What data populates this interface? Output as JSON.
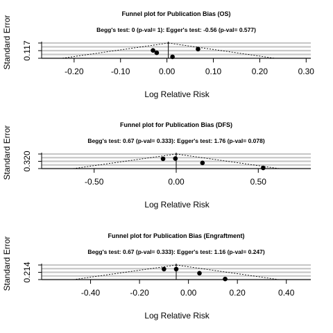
{
  "chart_data": [
    {
      "type": "scatter",
      "title": "Funnel plot for Publication Bias (OS)",
      "subtitle": "Begg's test: 0 (p-val= 1): Egger's test: -0.56 (p-val= 0.577)",
      "xlabel": "Log Relative Risk",
      "ylabel": "Standard Error",
      "xlim": [
        -0.27,
        0.31
      ],
      "ylim": [
        0.117,
        0
      ],
      "x_ticks": [
        -0.2,
        -0.1,
        0.0,
        0.1,
        0.2,
        0.3
      ],
      "x_tick_labels": [
        "-0.20",
        "-0.10",
        "0.00",
        "0.10",
        "0.20",
        "0.30"
      ],
      "y_tick_labels": [
        "0.117"
      ],
      "pooled_estimate": 0.003,
      "points": [
        {
          "x": -0.03,
          "y": 0.057
        },
        {
          "x": -0.022,
          "y": 0.075
        },
        {
          "x": 0.012,
          "y": 0.106
        },
        {
          "x": 0.067,
          "y": 0.047
        }
      ],
      "grid": true
    },
    {
      "type": "scatter",
      "title": "Funnel plot for Publication Bias (DFS)",
      "subtitle": "Begg's test: 0.67 (p-val= 0.333): Egger's test: 1.76 (p-val= 0.078)",
      "xlabel": "Log Relative Risk",
      "ylabel": "Standard Error",
      "xlim": [
        -0.82,
        0.82
      ],
      "ylim": [
        0.32,
        0
      ],
      "x_ticks": [
        -0.5,
        0.0,
        0.5
      ],
      "x_tick_labels": [
        "-0.50",
        "0.00",
        "0.50"
      ],
      "y_tick_labels": [
        "0.320"
      ],
      "pooled_estimate": 0.0,
      "points": [
        {
          "x": -0.08,
          "y": 0.105
        },
        {
          "x": -0.005,
          "y": 0.1
        },
        {
          "x": 0.16,
          "y": 0.195
        },
        {
          "x": 0.53,
          "y": 0.305
        }
      ],
      "grid": true
    },
    {
      "type": "scatter",
      "title": "Funnel plot for Publication Bias (Engraftment)",
      "subtitle": "Begg's test: 0.67 (p-val= 0.333): Egger's test: 1.16 (p-val= 0.247)",
      "xlabel": "Log Relative Risk",
      "ylabel": "Standard Error",
      "xlim": [
        -0.6,
        0.5
      ],
      "ylim": [
        0.214,
        0
      ],
      "x_ticks": [
        -0.4,
        -0.2,
        0.0,
        0.2,
        0.4
      ],
      "x_tick_labels": [
        "-0.40",
        "-0.20",
        "0.00",
        "0.20",
        "0.40"
      ],
      "y_tick_labels": [
        "0.214"
      ],
      "pooled_estimate": -0.05,
      "points": [
        {
          "x": -0.1,
          "y": 0.06
        },
        {
          "x": -0.05,
          "y": 0.06
        },
        {
          "x": 0.045,
          "y": 0.12
        },
        {
          "x": 0.15,
          "y": 0.205
        }
      ],
      "grid": true
    }
  ]
}
